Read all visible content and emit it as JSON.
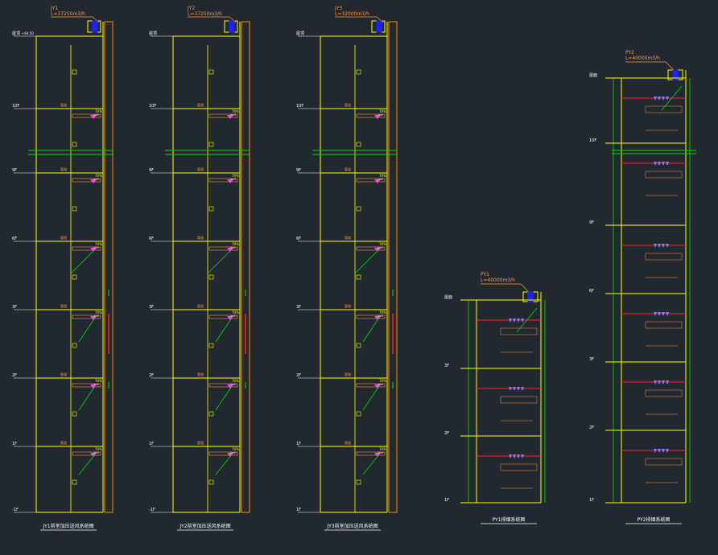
{
  "drawing": {
    "colors": {
      "background": "#212830",
      "shaft": "#ffff00",
      "duct": "#ff8c00",
      "duct_red": "#ff2020",
      "pipe_green": "#00e000",
      "annotation_magenta": "#ff40ff",
      "fan_blue": "#2020ff",
      "note_white": "#ffffff",
      "title_yellow": "#ffff00"
    },
    "stair_systems": [
      {
        "tag": "JY1",
        "flow": "L=37250m3/h",
        "roof_note": "",
        "titles": "JY1前室加压送风系统图",
        "floors": [
          {
            "label": "屋顶",
            "elev": "+64.50"
          },
          {
            "label": "10F",
            "elev": ""
          },
          {
            "label": "9F",
            "elev": ""
          },
          {
            "label": "6F",
            "elev": ""
          },
          {
            "label": "3F",
            "elev": ""
          },
          {
            "label": "2F",
            "elev": ""
          },
          {
            "label": "1F",
            "elev": ""
          },
          {
            "label": "-1F",
            "elev": ""
          }
        ],
        "vent_label": "70%",
        "shaft_label": "管道",
        "note_block": "",
        "magenta_notes": [
          "",
          "",
          ""
        ]
      },
      {
        "tag": "JY2",
        "flow": "L=37250m3/h",
        "roof_note": "",
        "titles": "JY2前室加压送风系统图",
        "floors": [
          {
            "label": "屋顶",
            "elev": ""
          },
          {
            "label": "10F",
            "elev": ""
          },
          {
            "label": "9F",
            "elev": ""
          },
          {
            "label": "6F",
            "elev": ""
          },
          {
            "label": "3F",
            "elev": ""
          },
          {
            "label": "2F",
            "elev": ""
          },
          {
            "label": "1F",
            "elev": ""
          },
          {
            "label": "-1F",
            "elev": ""
          }
        ],
        "vent_label": "70%",
        "shaft_label": "管道",
        "note_block": "",
        "magenta_notes": [
          "",
          "",
          ""
        ]
      },
      {
        "tag": "JY3",
        "flow": "L=32000m3/h",
        "roof_note": "",
        "titles": "JY3前室加压送风系统图",
        "floors": [
          {
            "label": "屋顶",
            "elev": ""
          },
          {
            "label": "10F",
            "elev": ""
          },
          {
            "label": "9F",
            "elev": ""
          },
          {
            "label": "6F",
            "elev": ""
          },
          {
            "label": "3F",
            "elev": ""
          },
          {
            "label": "2F",
            "elev": ""
          },
          {
            "label": "1F",
            "elev": ""
          },
          {
            "label": "1F",
            "elev": ""
          }
        ],
        "vent_label": "70%",
        "shaft_label": "管道",
        "note_block": "",
        "magenta_notes": [
          "",
          "",
          ""
        ]
      }
    ],
    "exhaust_systems": [
      {
        "tag": "PY1",
        "flow": "L=40000m3/h",
        "titles": "PY1排烟系统图",
        "floors": [
          "屋面",
          "3F",
          "2F",
          "1F"
        ],
        "notes": [
          "",
          "",
          ""
        ]
      },
      {
        "tag": "PY2",
        "flow": "L=40000m3/h",
        "titles": "PY2排烟系统图",
        "floors": [
          "屋面",
          "10F",
          "9F",
          "6F",
          "3F",
          "2F",
          "1F"
        ],
        "notes": [
          "",
          "",
          ""
        ]
      }
    ]
  }
}
